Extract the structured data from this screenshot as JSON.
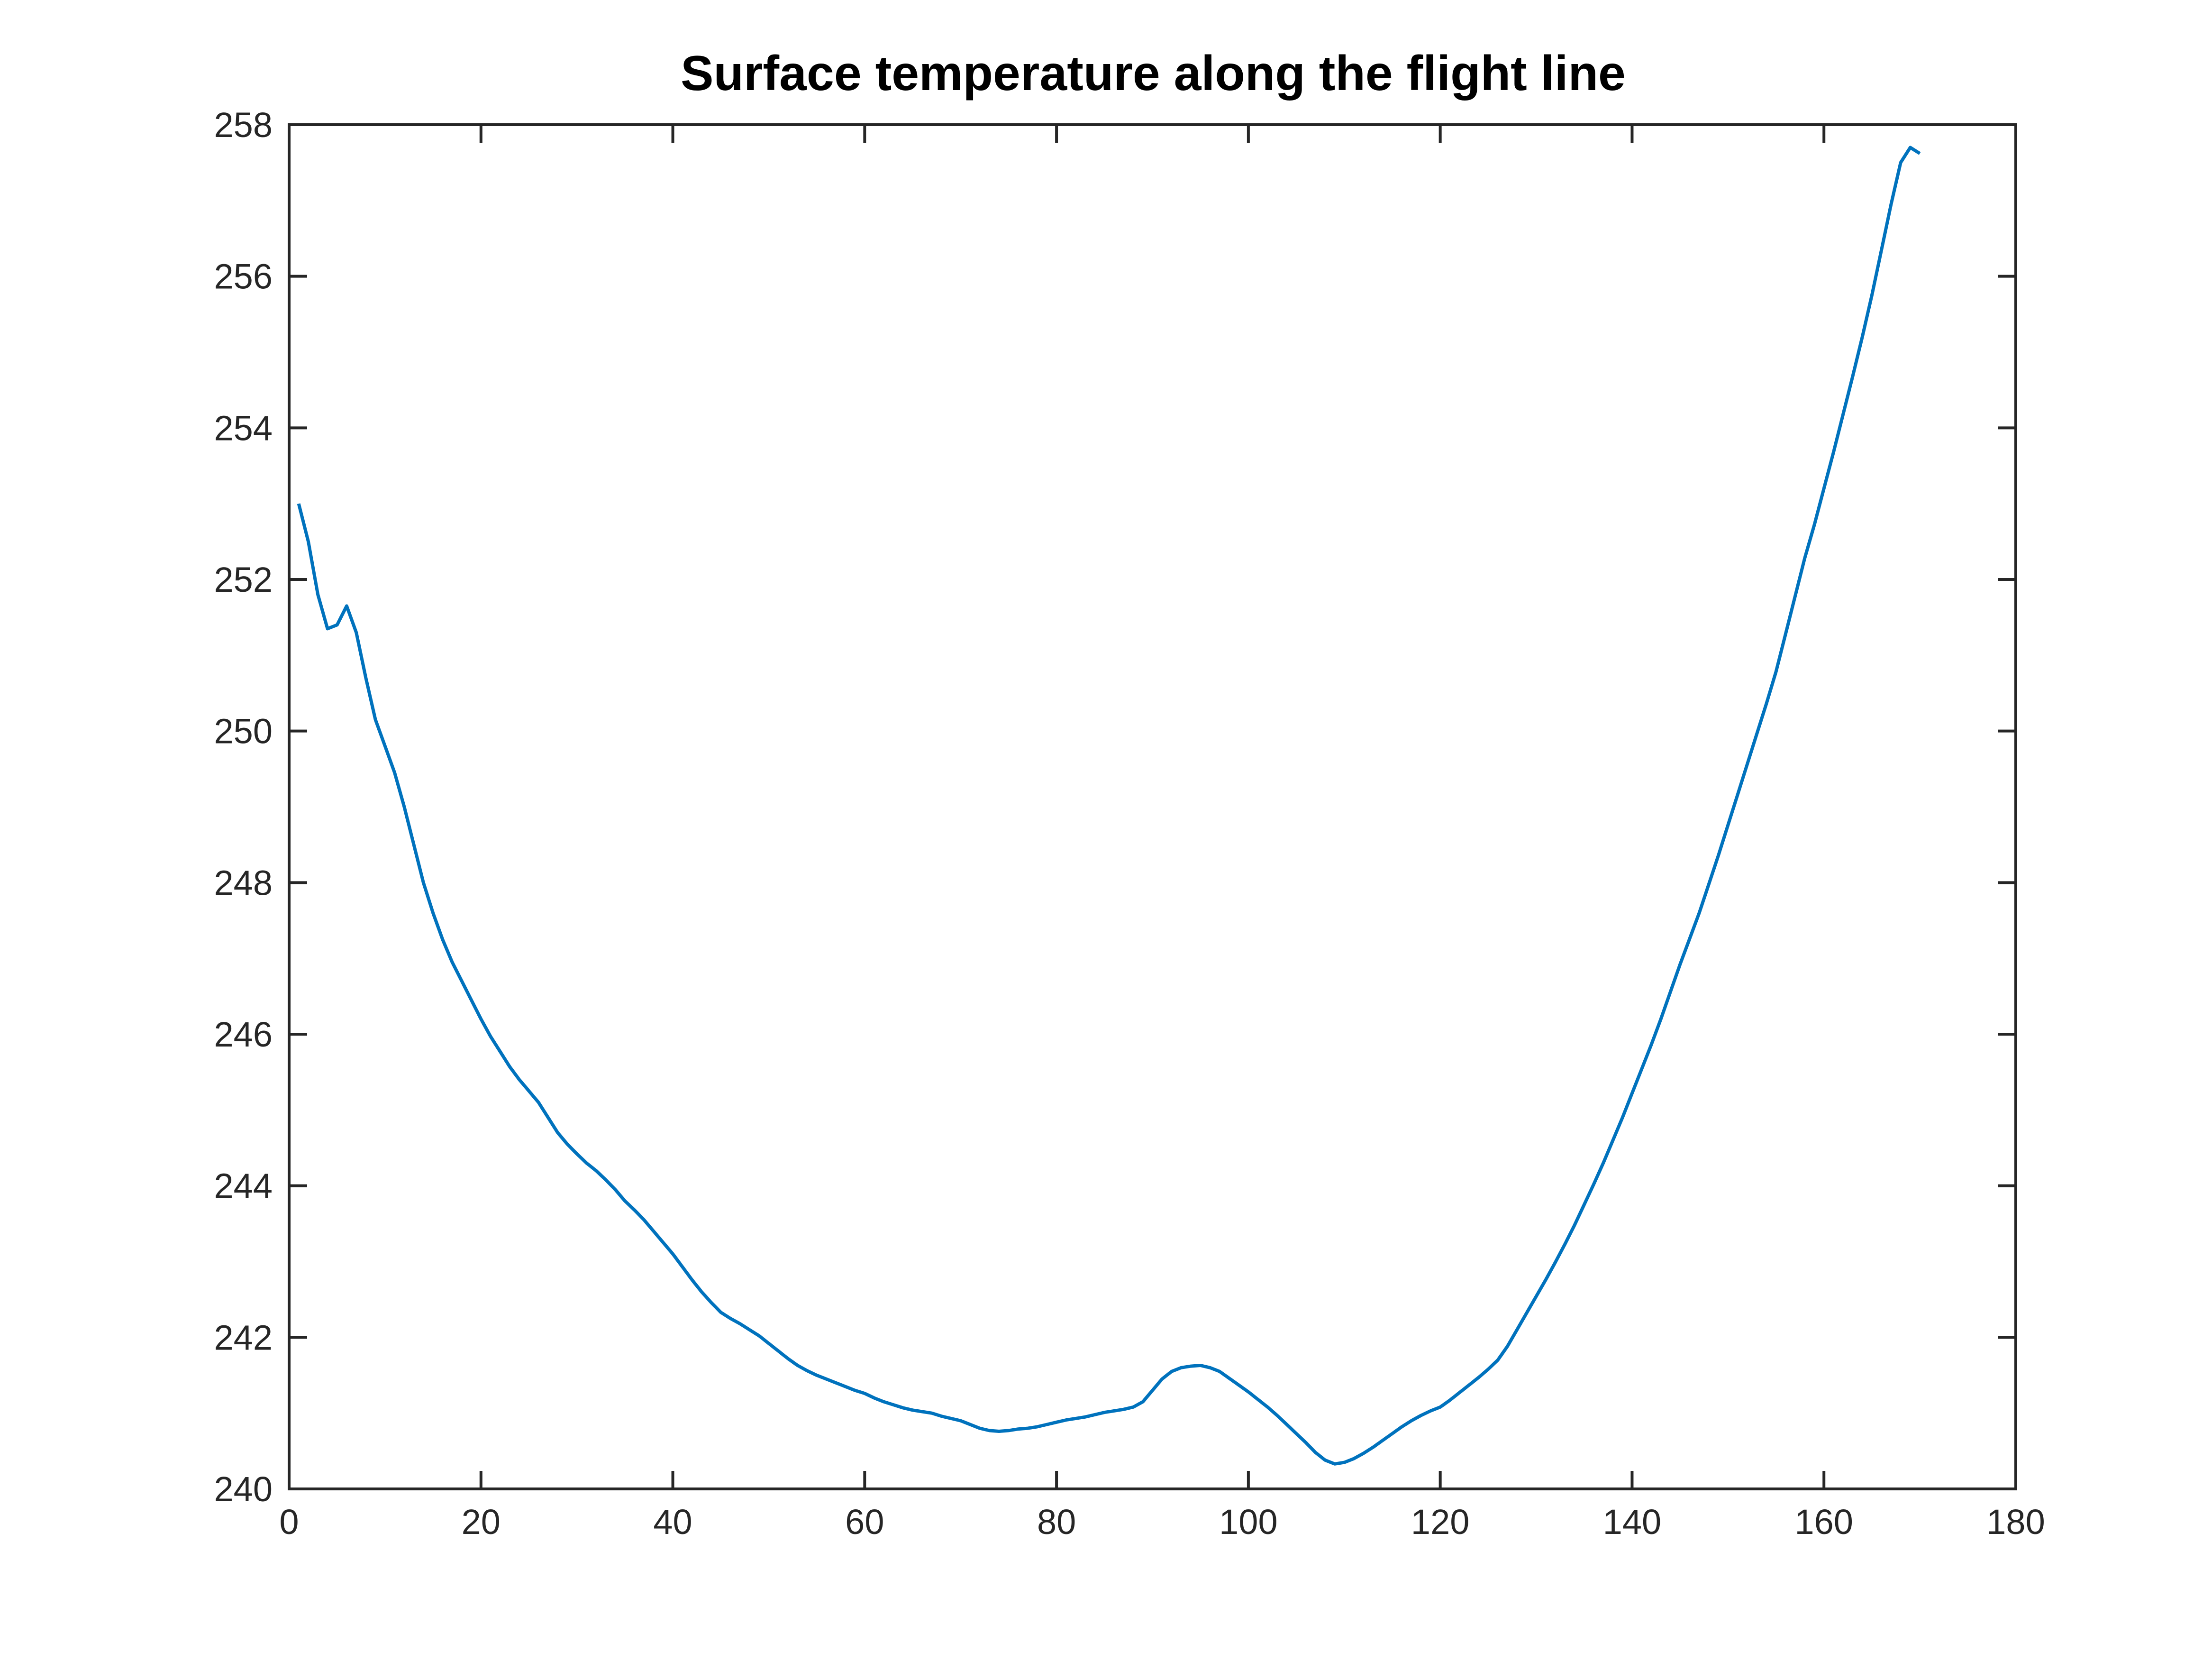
{
  "chart_data": {
    "type": "line",
    "title": "Surface temperature along the flight line",
    "xlabel": "",
    "ylabel": "",
    "xlim": [
      0,
      180
    ],
    "ylim": [
      240,
      258
    ],
    "xticks": [
      0,
      20,
      40,
      60,
      80,
      100,
      120,
      140,
      160,
      180
    ],
    "yticks": [
      240,
      242,
      244,
      246,
      248,
      250,
      252,
      254,
      256,
      258
    ],
    "xtick_labels": [
      "0",
      "20",
      "40",
      "60",
      "80",
      "100",
      "120",
      "140",
      "160",
      "180"
    ],
    "ytick_labels": [
      "240",
      "242",
      "244",
      "246",
      "248",
      "250",
      "252",
      "254",
      "256",
      "258"
    ],
    "grid": false,
    "legend": "none",
    "series": [
      {
        "color": "#0072BD",
        "x": [
          1,
          2,
          3,
          4,
          5,
          6,
          7,
          8,
          9,
          10,
          11,
          12,
          13,
          14,
          15,
          16,
          17,
          18,
          19,
          20,
          21,
          22,
          23,
          24,
          25,
          26,
          27,
          28,
          29,
          30,
          31,
          32,
          33,
          34,
          35,
          36,
          37,
          38,
          39,
          40,
          41,
          42,
          43,
          44,
          45,
          46,
          47,
          48,
          49,
          50,
          51,
          52,
          53,
          54,
          55,
          56,
          57,
          58,
          59,
          60,
          61,
          62,
          63,
          64,
          65,
          66,
          67,
          68,
          69,
          70,
          71,
          72,
          73,
          74,
          75,
          76,
          77,
          78,
          79,
          80,
          81,
          82,
          83,
          84,
          85,
          86,
          87,
          88,
          89,
          90,
          91,
          92,
          93,
          94,
          95,
          96,
          97,
          98,
          99,
          100,
          101,
          102,
          103,
          104,
          105,
          106,
          107,
          108,
          109,
          110,
          111,
          112,
          113,
          114,
          115,
          116,
          117,
          118,
          119,
          120,
          121,
          122,
          123,
          124,
          125,
          126,
          127,
          128,
          129,
          130,
          131,
          132,
          133,
          134,
          135,
          136,
          137,
          138,
          139,
          140,
          141,
          142,
          143,
          144,
          145,
          146,
          147,
          148,
          149,
          150,
          151,
          152,
          153,
          154,
          155,
          156,
          157,
          158,
          159,
          160,
          161,
          162,
          163,
          164,
          165,
          166,
          167,
          168,
          169,
          170
        ],
        "y": [
          253.0,
          252.5,
          251.8,
          251.35,
          251.4,
          251.65,
          251.3,
          250.7,
          250.15,
          249.8,
          249.45,
          249.0,
          248.5,
          248.0,
          247.6,
          247.25,
          246.95,
          246.7,
          246.45,
          246.2,
          245.97,
          245.77,
          245.57,
          245.4,
          245.25,
          245.1,
          244.9,
          244.7,
          244.55,
          244.42,
          244.3,
          244.2,
          244.08,
          243.95,
          243.8,
          243.68,
          243.55,
          243.4,
          243.25,
          243.1,
          242.93,
          242.76,
          242.6,
          242.46,
          242.33,
          242.25,
          242.18,
          242.1,
          242.02,
          241.92,
          241.82,
          241.72,
          241.63,
          241.56,
          241.5,
          241.45,
          241.4,
          241.35,
          241.3,
          241.26,
          241.2,
          241.15,
          241.11,
          241.07,
          241.04,
          241.02,
          241.0,
          240.96,
          240.93,
          240.9,
          240.85,
          240.8,
          240.77,
          240.76,
          240.77,
          240.79,
          240.8,
          240.82,
          240.85,
          240.88,
          240.91,
          240.93,
          240.95,
          240.98,
          241.01,
          241.03,
          241.05,
          241.08,
          241.15,
          241.3,
          241.45,
          241.55,
          241.6,
          241.62,
          241.63,
          241.6,
          241.55,
          241.46,
          241.37,
          241.28,
          241.18,
          241.08,
          240.97,
          240.85,
          240.73,
          240.61,
          240.48,
          240.38,
          240.33,
          240.35,
          240.4,
          240.47,
          240.55,
          240.64,
          240.73,
          240.82,
          240.9,
          240.97,
          241.03,
          241.08,
          241.17,
          241.27,
          241.37,
          241.47,
          241.58,
          241.7,
          241.88,
          242.1,
          242.32,
          242.54,
          242.76,
          242.99,
          243.23,
          243.48,
          243.75,
          244.02,
          244.3,
          244.6,
          244.9,
          245.22,
          245.54,
          245.86,
          246.2,
          246.56,
          246.92,
          247.26,
          247.6,
          247.98,
          248.36,
          248.76,
          249.16,
          249.56,
          249.96,
          250.36,
          250.78,
          251.28,
          251.78,
          252.28,
          252.72,
          253.2,
          253.68,
          254.18,
          254.68,
          255.2,
          255.75,
          256.35,
          256.95,
          257.5,
          257.7,
          257.62
        ]
      }
    ]
  }
}
